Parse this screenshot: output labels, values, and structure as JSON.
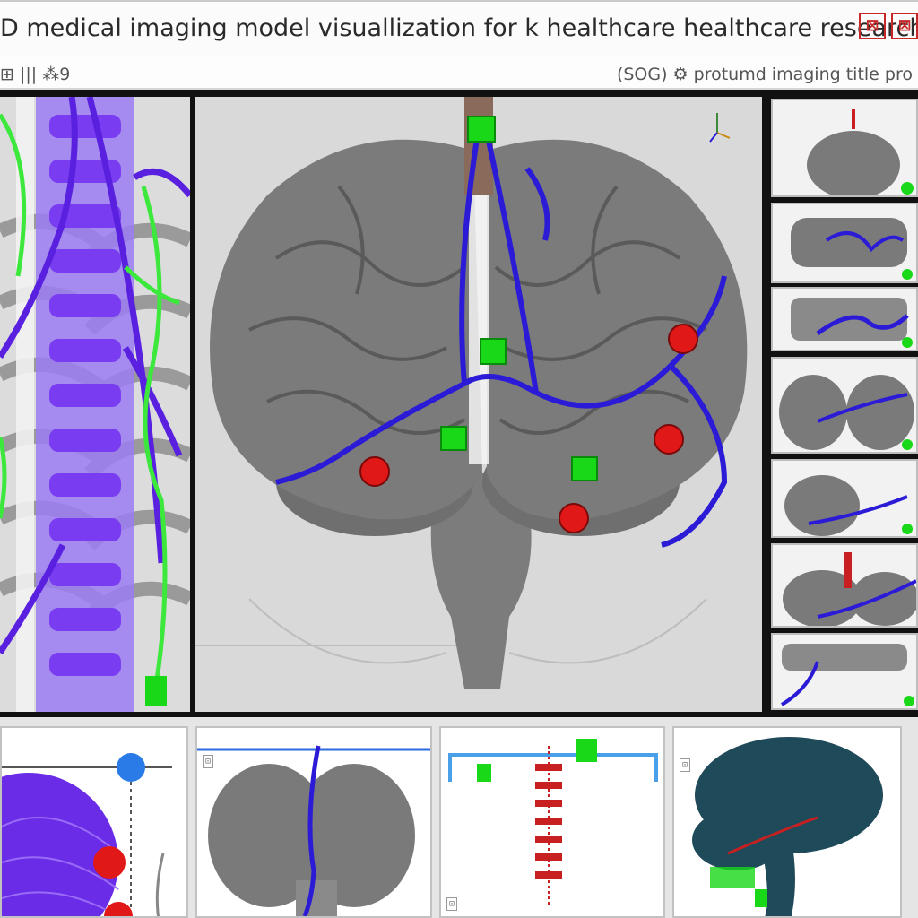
{
  "window": {
    "title": "D medical imaging model visuallization for k   healthcare   healthcare research",
    "buttons": [
      {
        "name": "minimize-button",
        "glyph": "⊠"
      },
      {
        "name": "close-button",
        "glyph": "⊠"
      }
    ]
  },
  "subbar": {
    "left": "⊞ ||| ⁂9",
    "right": "(SOG) ⚙ protumd imaging title pro"
  },
  "colors": {
    "vessel": "#2b1bd6",
    "marker_red": "#e01818",
    "marker_green": "#18d818",
    "spine_purple": "#7a3cf0",
    "nerve_green": "#3ce83c"
  },
  "bottom_panels": [
    {
      "label": "⊡"
    },
    {
      "label": "⊡"
    },
    {
      "label": "⊡"
    },
    {
      "label": "⊡"
    }
  ]
}
